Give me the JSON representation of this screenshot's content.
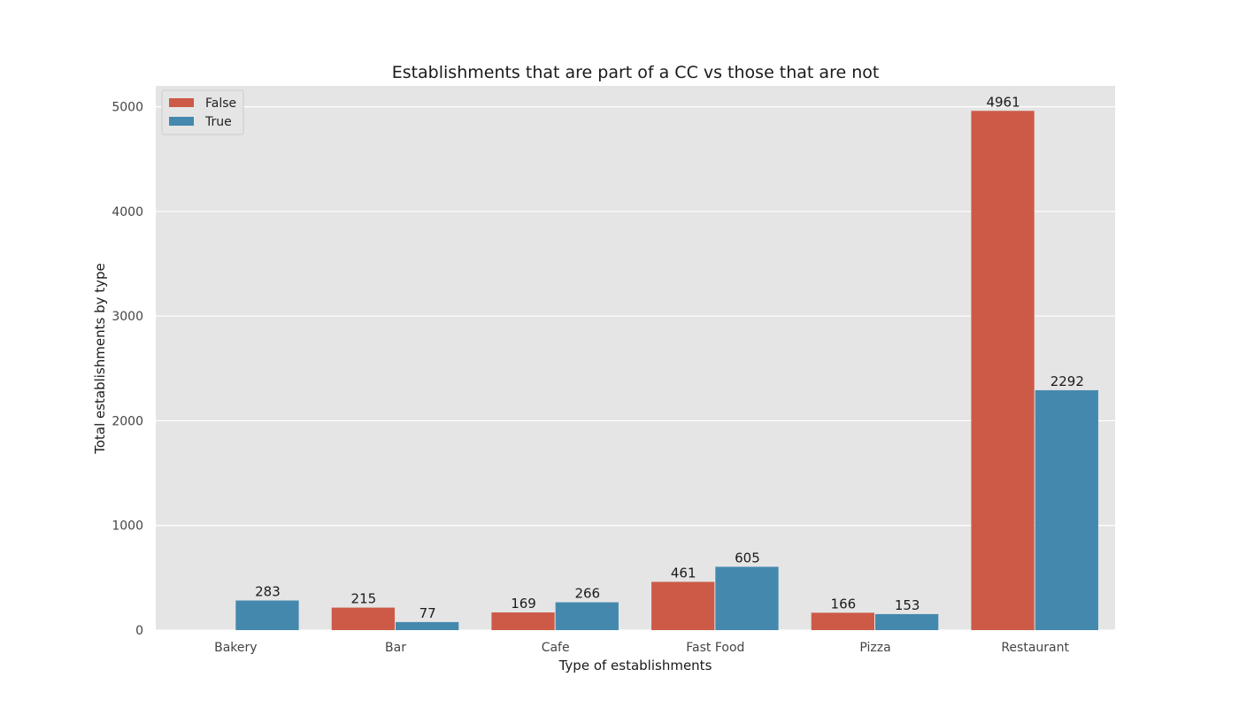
{
  "chart_data": {
    "type": "bar",
    "title": "Establishments that are part of a CC vs those that are not",
    "xlabel": "Type of establishments",
    "ylabel": "Total establishments by type",
    "categories": [
      "Bakery",
      "Bar",
      "Cafe",
      "Fast Food",
      "Pizza",
      "Restaurant"
    ],
    "series": [
      {
        "name": "False",
        "color": "#cc5a47",
        "values": [
          0,
          215,
          169,
          461,
          166,
          4961
        ]
      },
      {
        "name": "True",
        "color": "#4488ae",
        "values": [
          283,
          77,
          266,
          605,
          153,
          2292
        ]
      }
    ],
    "data_labels": {
      "False": [
        "",
        "215",
        "169",
        "461",
        "166",
        "4961"
      ],
      "True": [
        "283",
        "77",
        "266",
        "605",
        "153",
        "2292"
      ]
    },
    "ylim": [
      0,
      5200
    ],
    "yticks": [
      0,
      1000,
      2000,
      3000,
      4000,
      5000
    ],
    "grid": true,
    "legend_position": "top-left",
    "background_color": "#e5e5e5",
    "grid_color": "#ffffff"
  }
}
